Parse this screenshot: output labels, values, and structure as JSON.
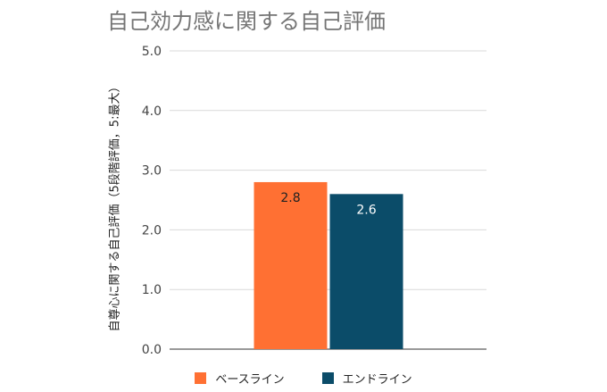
{
  "chart_data": {
    "type": "bar",
    "title": "自己効力感に関する自己評価",
    "ylabel": "自尊心に関する自己評価（5段階評価，5:最大）",
    "xlabel": "",
    "categories": [
      ""
    ],
    "series": [
      {
        "name": "ベースライン",
        "values": [
          2.8
        ],
        "color": "#ff7033"
      },
      {
        "name": "エンドライン",
        "values": [
          2.6
        ],
        "color": "#0b4c69"
      }
    ],
    "ylim": [
      0,
      5
    ],
    "yticks": [
      "0.0",
      "1.0",
      "2.0",
      "3.0",
      "4.0",
      "5.0"
    ],
    "data_labels": [
      "2.8",
      "2.6"
    ],
    "grid": true,
    "legend_position": "bottom"
  }
}
